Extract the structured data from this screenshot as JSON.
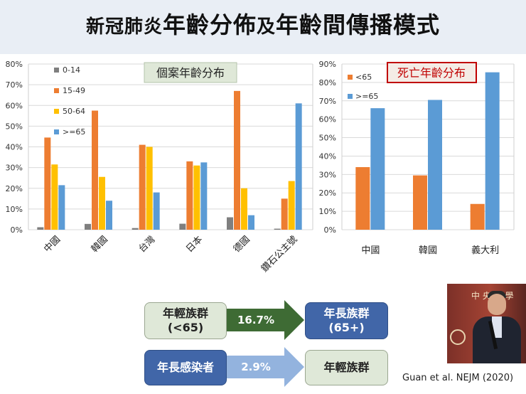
{
  "title": {
    "part1": "新冠肺炎",
    "part2": "年齡分佈",
    "part3": "及",
    "part4": "年齡間傳播模式"
  },
  "chart_data": [
    {
      "type": "bar",
      "title": "個案年齡分布",
      "categories": [
        "中國",
        "韓國",
        "台灣",
        "日本",
        "德國",
        "鑽石公主號"
      ],
      "series": [
        {
          "name": "0-14",
          "color": "#7f7f7f",
          "values": [
            1.2,
            2.8,
            0.8,
            2.9,
            6,
            0.5
          ]
        },
        {
          "name": "15-49",
          "color": "#ed7d31",
          "values": [
            44.5,
            57.5,
            41,
            33,
            67,
            15
          ]
        },
        {
          "name": "50-64",
          "color": "#ffc000",
          "values": [
            31.5,
            25.5,
            40,
            31,
            20,
            23.5
          ]
        },
        {
          "name": ">=65",
          "color": "#5b9bd5",
          "values": [
            21.5,
            14,
            18,
            32.5,
            7,
            61
          ]
        }
      ],
      "ylim": [
        0,
        80
      ],
      "yticks": [
        "0%",
        "10%",
        "20%",
        "30%",
        "40%",
        "50%",
        "60%",
        "70%",
        "80%"
      ],
      "legend_position": "top-left"
    },
    {
      "type": "bar",
      "title": "死亡年齡分布",
      "categories": [
        "中國",
        "韓國",
        "義大利"
      ],
      "series": [
        {
          "name": "<65",
          "color": "#ed7d31",
          "values": [
            34,
            29.5,
            14
          ]
        },
        {
          "name": ">=65",
          "color": "#5b9bd5",
          "values": [
            66,
            70.5,
            85.5
          ]
        }
      ],
      "ylim": [
        0,
        90
      ],
      "yticks": [
        "0%",
        "10%",
        "20%",
        "30%",
        "40%",
        "50%",
        "60%",
        "70%",
        "80%",
        "90%"
      ],
      "legend_position": "top-left"
    }
  ],
  "flow": {
    "young_group": "年輕族群\n(<65)",
    "elder_group": "年長族群\n(65+)",
    "young_to_old_pct": "16.7%",
    "elder_infected": "年長感染者",
    "old_to_young_pct": "2.9%",
    "young_group_2": "年輕族群"
  },
  "citation": "Guan et al. NEJM (2020)",
  "photo": {
    "sign_text": "中 央 大 學"
  }
}
